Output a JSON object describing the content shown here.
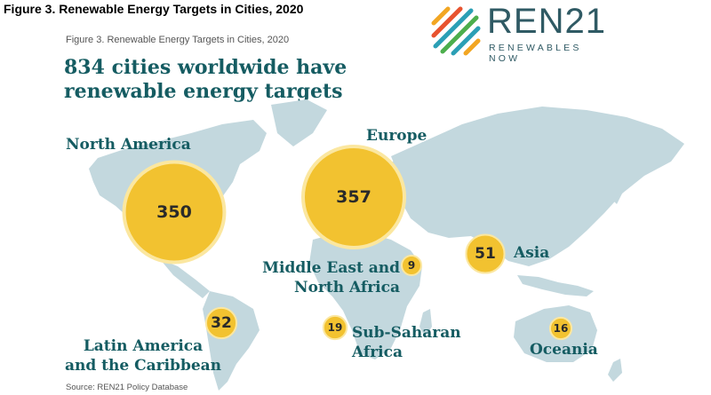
{
  "outer_title": "Figure 3. Renewable Energy Targets in Cities, 2020",
  "logo": {
    "word": "REN21",
    "tagline": "RENEWABLES NOW"
  },
  "figure_label": "Figure 3.   Renewable Energy Targets in Cities, 2020",
  "headline_line1": "834 cities worldwide have",
  "headline_line2": "renewable energy targets",
  "source": "Source: REN21 Policy Database",
  "colors": {
    "bubble": "#f2c230",
    "bubble_edge": "#fbe7a0",
    "land": "#c3d8de",
    "text": "#155c62"
  },
  "chart_data": {
    "type": "bubble-map",
    "title": "834 cities worldwide have renewable energy targets",
    "regions": [
      {
        "name": "North America",
        "value": 350
      },
      {
        "name": "Europe",
        "value": 357
      },
      {
        "name": "Middle East and North Africa",
        "value": 9
      },
      {
        "name": "Asia",
        "value": 51
      },
      {
        "name": "Latin America and the Caribbean",
        "value": 32
      },
      {
        "name": "Sub-Saharan Africa",
        "value": 19
      },
      {
        "name": "Oceania",
        "value": 16
      }
    ]
  }
}
